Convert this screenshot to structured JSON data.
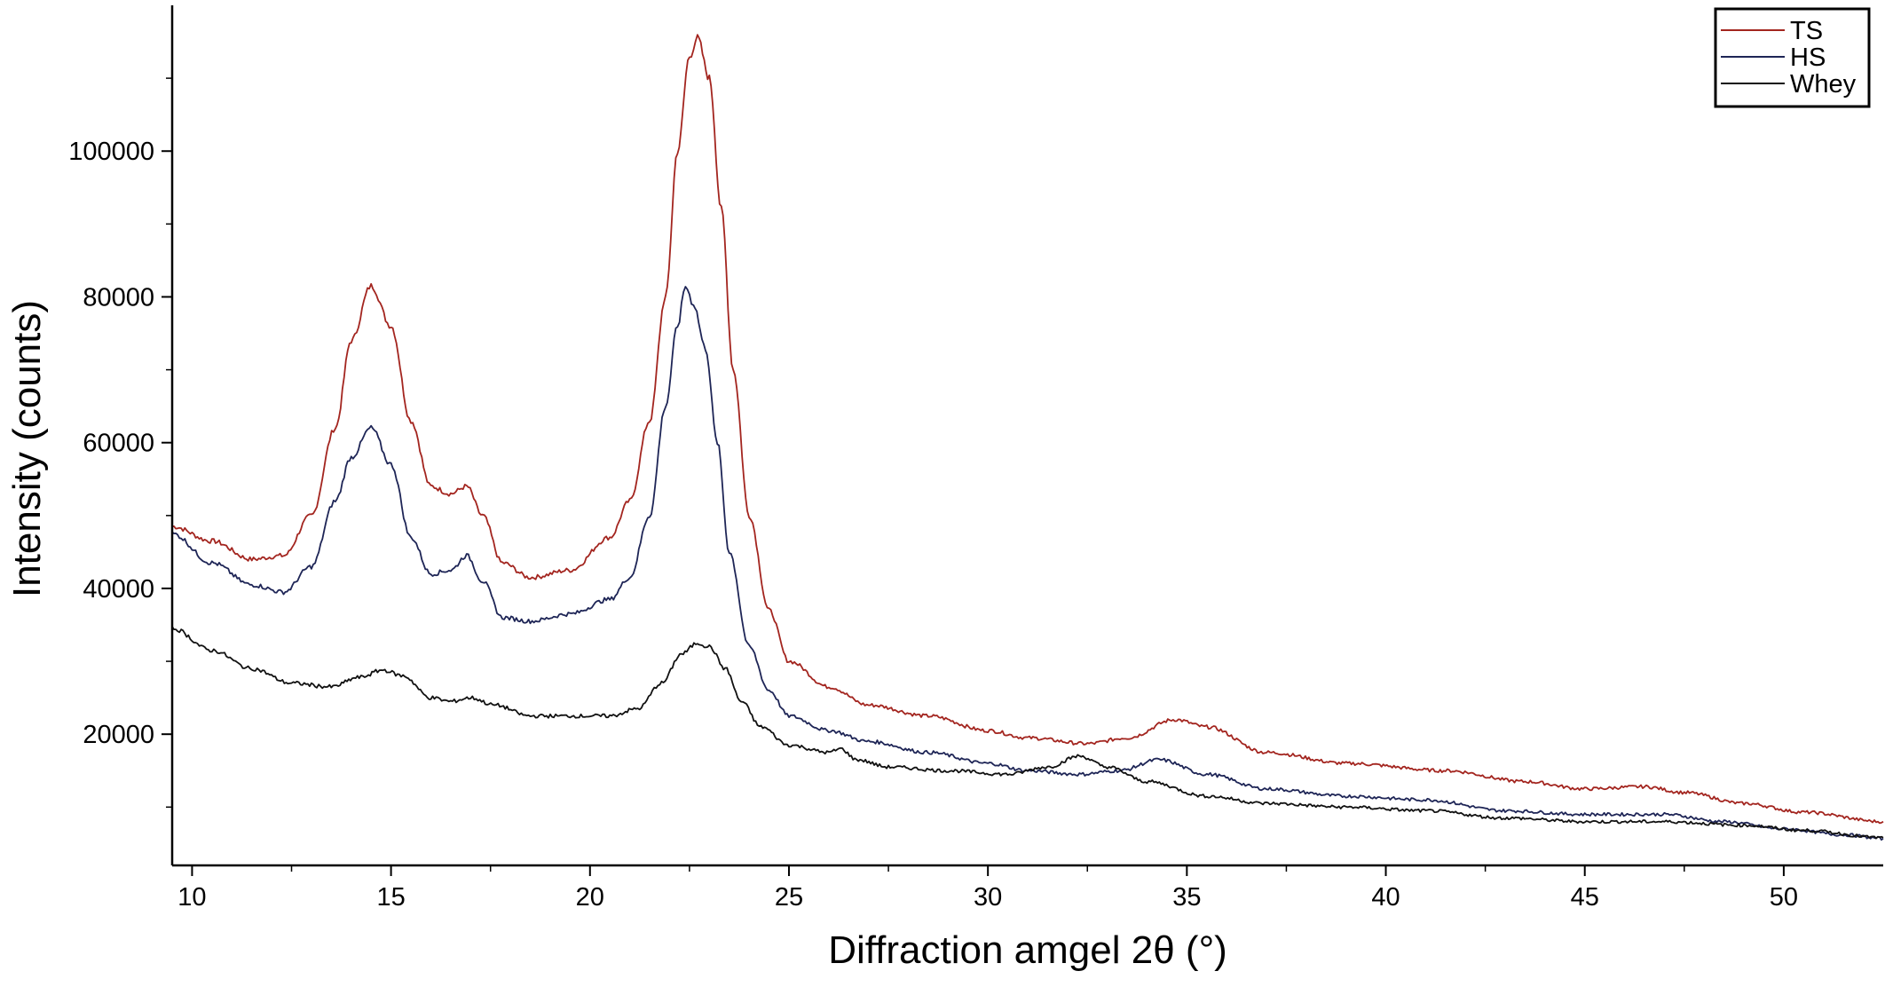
{
  "chart_data": {
    "type": "line",
    "xlabel": "Diffraction amgel 2θ (°)",
    "ylabel": "Intensity (counts)",
    "xlim": [
      9.5,
      52.5
    ],
    "ylim": [
      2000,
      120000
    ],
    "x_ticks": [
      10,
      15,
      20,
      25,
      30,
      35,
      40,
      45,
      50
    ],
    "x_tick_labels": [
      "10",
      "15",
      "20",
      "25",
      "30",
      "35",
      "40",
      "45",
      "50"
    ],
    "y_ticks": [
      20000,
      40000,
      60000,
      80000,
      100000
    ],
    "y_tick_labels": [
      "20000",
      "40000",
      "60000",
      "80000",
      "100000"
    ],
    "grid": false,
    "legend_position": "top-right",
    "series": [
      {
        "name": "TS",
        "color": "#a3251f",
        "x": [
          9.5,
          10.5,
          11.5,
          12.3,
          13.0,
          13.6,
          14.0,
          14.5,
          15.0,
          15.5,
          16.0,
          16.5,
          16.9,
          17.3,
          17.8,
          18.5,
          19.5,
          20.5,
          21.0,
          21.5,
          21.9,
          22.2,
          22.5,
          22.7,
          23.0,
          23.3,
          23.6,
          24.0,
          24.5,
          25.0,
          26.0,
          27.0,
          28.5,
          30.0,
          31.0,
          32.5,
          33.5,
          34.7,
          35.5,
          37.0,
          39.0,
          41.5,
          43.5,
          45.0,
          46.5,
          47.5,
          49.0,
          50.5,
          52.5
        ],
        "values": [
          48500,
          46500,
          44000,
          44500,
          50000,
          62000,
          74000,
          81500,
          76000,
          63000,
          54000,
          53000,
          54000,
          50000,
          43500,
          41500,
          42500,
          47000,
          52000,
          63000,
          80000,
          100000,
          113000,
          115500,
          110000,
          92000,
          70000,
          50000,
          37000,
          30000,
          26500,
          24000,
          22500,
          20500,
          19500,
          18700,
          19500,
          22000,
          21000,
          17500,
          16000,
          15000,
          13500,
          12500,
          12800,
          12000,
          10500,
          9300,
          8000
        ]
      },
      {
        "name": "HS",
        "color": "#1e2556",
        "x": [
          9.5,
          10.5,
          11.5,
          12.3,
          13.0,
          13.6,
          14.0,
          14.5,
          15.0,
          15.5,
          16.0,
          16.5,
          16.9,
          17.3,
          17.8,
          18.5,
          19.5,
          20.5,
          21.0,
          21.5,
          21.9,
          22.2,
          22.4,
          22.6,
          22.9,
          23.2,
          23.5,
          24.0,
          24.5,
          25.0,
          26.0,
          27.0,
          28.5,
          30.0,
          31.0,
          32.3,
          33.3,
          34.3,
          35.5,
          37.0,
          39.0,
          41.0,
          43.0,
          45.0,
          47.0,
          48.5,
          50.0,
          51.5,
          52.5
        ],
        "values": [
          47500,
          43500,
          40500,
          39500,
          43000,
          52000,
          58000,
          62000,
          57000,
          47000,
          42000,
          42500,
          44500,
          41000,
          36000,
          35500,
          36500,
          38500,
          41500,
          50000,
          65000,
          76000,
          81500,
          79000,
          73000,
          60000,
          45000,
          32000,
          26000,
          22500,
          20500,
          19000,
          17500,
          16000,
          15000,
          14500,
          15000,
          16500,
          14500,
          12500,
          11500,
          11000,
          9500,
          9000,
          9000,
          8000,
          7000,
          6200,
          5700
        ]
      },
      {
        "name": "Whey",
        "color": "#111111",
        "x": [
          9.5,
          10.5,
          11.5,
          12.5,
          13.5,
          14.2,
          14.8,
          15.3,
          16.0,
          16.5,
          17.0,
          17.6,
          18.5,
          19.5,
          20.5,
          21.2,
          21.8,
          22.3,
          22.7,
          23.0,
          23.4,
          23.8,
          24.3,
          25.0,
          26.0,
          26.3,
          26.7,
          27.5,
          29.0,
          30.5,
          31.5,
          32.3,
          33.0,
          34.0,
          35.5,
          37.0,
          39.0,
          41.0,
          43.0,
          45.0,
          47.0,
          49.0,
          50.5,
          52.5
        ],
        "values": [
          34500,
          31500,
          29000,
          27000,
          26500,
          27800,
          28800,
          28000,
          25000,
          24500,
          25000,
          24000,
          22500,
          22500,
          22500,
          23500,
          27000,
          31000,
          32500,
          32000,
          29000,
          24500,
          21000,
          18500,
          17500,
          18000,
          16500,
          15500,
          15000,
          14500,
          15500,
          17000,
          15500,
          13500,
          11500,
          10500,
          10000,
          9500,
          8500,
          8000,
          8000,
          7500,
          6800,
          5800
        ]
      }
    ]
  }
}
